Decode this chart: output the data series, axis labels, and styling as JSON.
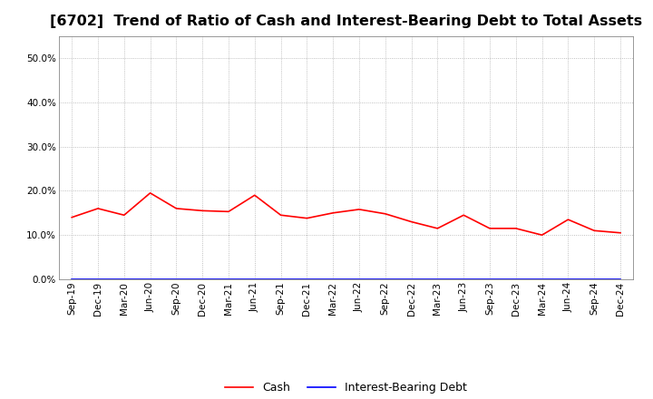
{
  "title": "[6702]  Trend of Ratio of Cash and Interest-Bearing Debt to Total Assets",
  "x_labels": [
    "Sep-19",
    "Dec-19",
    "Mar-20",
    "Jun-20",
    "Sep-20",
    "Dec-20",
    "Mar-21",
    "Jun-21",
    "Sep-21",
    "Dec-21",
    "Mar-22",
    "Jun-22",
    "Sep-22",
    "Dec-22",
    "Mar-23",
    "Jun-23",
    "Sep-23",
    "Dec-23",
    "Mar-24",
    "Jun-24",
    "Sep-24",
    "Dec-24"
  ],
  "cash": [
    0.14,
    0.16,
    0.145,
    0.195,
    0.16,
    0.155,
    0.153,
    0.19,
    0.145,
    0.138,
    0.15,
    0.158,
    0.148,
    0.13,
    0.115,
    0.145,
    0.115,
    0.115,
    0.1,
    0.135,
    0.11,
    0.105
  ],
  "interest_bearing_debt": [
    0.0,
    0.0,
    0.0,
    0.0,
    0.0,
    0.0,
    0.0,
    0.0,
    0.0,
    0.0,
    0.0,
    0.0,
    0.0,
    0.0,
    0.0,
    0.0,
    0.0,
    0.0,
    0.0,
    0.0,
    0.0,
    0.0
  ],
  "cash_color": "#ff0000",
  "debt_color": "#0000ff",
  "ylim": [
    0.0,
    0.55
  ],
  "yticks": [
    0.0,
    0.1,
    0.2,
    0.3,
    0.4,
    0.5
  ],
  "background_color": "#ffffff",
  "grid_color": "#999999",
  "title_fontsize": 11.5,
  "tick_fontsize": 7.5,
  "legend_fontsize": 9
}
